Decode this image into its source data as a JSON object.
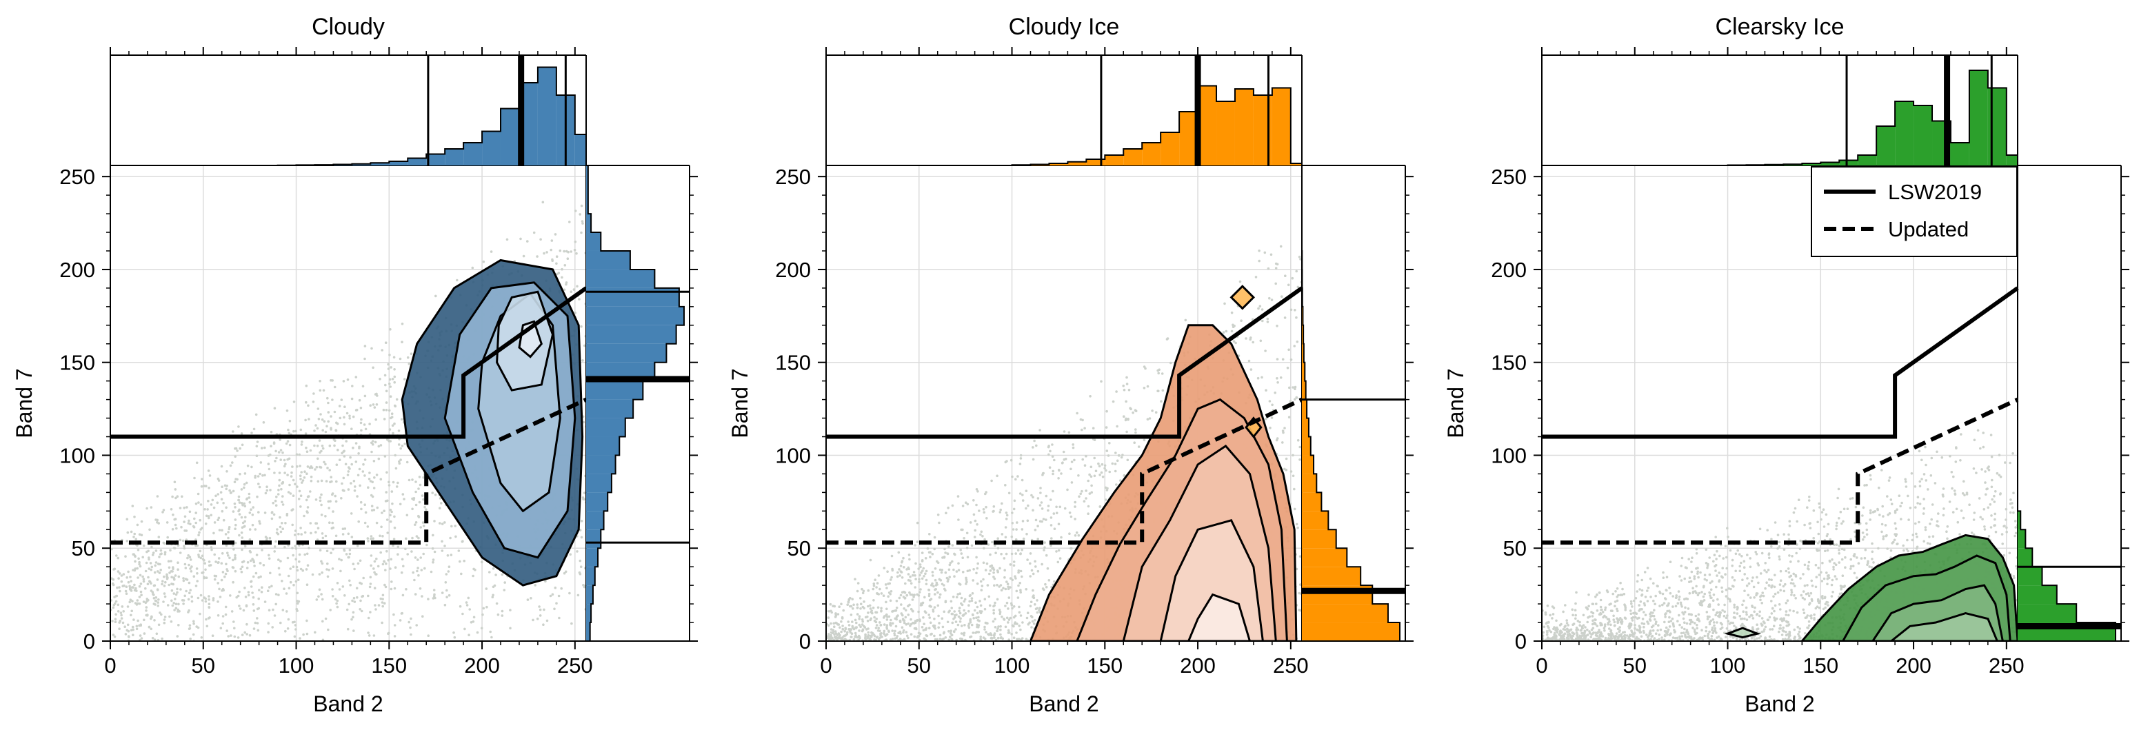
{
  "chart_data": [
    {
      "type": "scatter",
      "title": "Cloudy",
      "xlabel": "Band 2",
      "ylabel": "Band 7",
      "xlim": [
        0,
        256
      ],
      "ylim": [
        0,
        256
      ],
      "xticks": [
        0,
        50,
        100,
        150,
        200,
        250
      ],
      "yticks": [
        0,
        50,
        100,
        150,
        200,
        250
      ],
      "grid": true,
      "fill_color": "#4682b4",
      "thresholds": {
        "LSW2019": {
          "x": [
            0,
            190,
            190,
            256
          ],
          "y": [
            110,
            110,
            143,
            190
          ]
        },
        "Updated": {
          "x": [
            0,
            170,
            170,
            256
          ],
          "y": [
            53,
            53,
            90,
            130
          ]
        }
      },
      "contours": [
        [
          [
            160,
            105
          ],
          [
            180,
            75
          ],
          [
            200,
            45
          ],
          [
            222,
            30
          ],
          [
            240,
            35
          ],
          [
            252,
            60
          ],
          [
            254,
            110
          ],
          [
            252,
            170
          ],
          [
            238,
            200
          ],
          [
            210,
            205
          ],
          [
            185,
            190
          ],
          [
            165,
            160
          ],
          [
            157,
            130
          ]
        ],
        [
          [
            180,
            120
          ],
          [
            195,
            80
          ],
          [
            212,
            50
          ],
          [
            230,
            45
          ],
          [
            246,
            70
          ],
          [
            250,
            120
          ],
          [
            246,
            175
          ],
          [
            228,
            193
          ],
          [
            205,
            190
          ],
          [
            188,
            165
          ]
        ],
        [
          [
            198,
            125
          ],
          [
            210,
            85
          ],
          [
            222,
            70
          ],
          [
            236,
            80
          ],
          [
            242,
            120
          ],
          [
            238,
            170
          ],
          [
            226,
            187
          ],
          [
            210,
            175
          ],
          [
            200,
            150
          ]
        ],
        [
          [
            208,
            150
          ],
          [
            216,
            135
          ],
          [
            232,
            138
          ],
          [
            238,
            165
          ],
          [
            230,
            188
          ],
          [
            216,
            185
          ],
          [
            209,
            170
          ]
        ],
        [
          [
            220,
            158
          ],
          [
            226,
            153
          ],
          [
            232,
            160
          ],
          [
            228,
            172
          ],
          [
            222,
            170
          ]
        ]
      ],
      "hist_x": {
        "bins": [
          0,
          10,
          20,
          30,
          40,
          50,
          60,
          70,
          80,
          90,
          100,
          110,
          120,
          130,
          140,
          150,
          160,
          170,
          180,
          190,
          200,
          210,
          220,
          230,
          240,
          250,
          256
        ],
        "counts": [
          0,
          0,
          0,
          0,
          0,
          0,
          0,
          0,
          0,
          0.002,
          0.004,
          0.006,
          0.01,
          0.015,
          0.025,
          0.04,
          0.07,
          0.11,
          0.16,
          0.22,
          0.33,
          0.55,
          0.8,
          0.95,
          0.68,
          0.3
        ],
        "lines": [
          {
            "x": 171,
            "bold": false
          },
          {
            "x": 221,
            "bold": true
          },
          {
            "x": 245,
            "bold": false
          }
        ]
      },
      "hist_y": {
        "bins": [
          0,
          10,
          20,
          30,
          40,
          50,
          60,
          70,
          80,
          90,
          100,
          110,
          120,
          130,
          140,
          150,
          160,
          170,
          180,
          190,
          200,
          210,
          220,
          230,
          256
        ],
        "counts": [
          0.04,
          0.05,
          0.07,
          0.09,
          0.12,
          0.15,
          0.18,
          0.22,
          0.26,
          0.3,
          0.34,
          0.4,
          0.48,
          0.58,
          0.7,
          0.82,
          0.92,
          1.0,
          0.95,
          0.7,
          0.45,
          0.15,
          0.05,
          0.02
        ],
        "lines": [
          {
            "y": 53,
            "bold": false
          },
          {
            "y": 141,
            "bold": true
          },
          {
            "y": 188,
            "bold": false
          }
        ]
      }
    },
    {
      "type": "scatter",
      "title": "Cloudy Ice",
      "xlabel": "Band 2",
      "ylabel": "Band 7",
      "xlim": [
        0,
        256
      ],
      "ylim": [
        0,
        256
      ],
      "xticks": [
        0,
        50,
        100,
        150,
        200,
        250
      ],
      "yticks": [
        0,
        50,
        100,
        150,
        200,
        250
      ],
      "grid": true,
      "fill_color": "#ff9500",
      "thresholds": {
        "LSW2019": {
          "x": [
            0,
            190,
            190,
            256
          ],
          "y": [
            110,
            110,
            143,
            190
          ]
        },
        "Updated": {
          "x": [
            0,
            170,
            170,
            256
          ],
          "y": [
            53,
            53,
            90,
            130
          ]
        }
      },
      "contours": [
        [
          [
            110,
            0
          ],
          [
            253,
            0
          ],
          [
            252,
            60
          ],
          [
            246,
            90
          ],
          [
            238,
            110
          ],
          [
            232,
            130
          ],
          [
            218,
            160
          ],
          [
            208,
            170
          ],
          [
            195,
            170
          ],
          [
            188,
            150
          ],
          [
            180,
            120
          ],
          [
            170,
            100
          ],
          [
            155,
            80
          ],
          [
            138,
            55
          ],
          [
            120,
            25
          ]
        ],
        [
          [
            135,
            0
          ],
          [
            248,
            0
          ],
          [
            245,
            60
          ],
          [
            238,
            95
          ],
          [
            225,
            120
          ],
          [
            212,
            130
          ],
          [
            200,
            125
          ],
          [
            188,
            100
          ],
          [
            172,
            75
          ],
          [
            158,
            52
          ],
          [
            145,
            25
          ]
        ],
        [
          [
            160,
            0
          ],
          [
            242,
            0
          ],
          [
            238,
            50
          ],
          [
            228,
            90
          ],
          [
            215,
            105
          ],
          [
            200,
            95
          ],
          [
            185,
            65
          ],
          [
            170,
            40
          ]
        ],
        [
          [
            180,
            0
          ],
          [
            235,
            0
          ],
          [
            230,
            40
          ],
          [
            218,
            65
          ],
          [
            200,
            60
          ],
          [
            188,
            35
          ]
        ],
        [
          [
            195,
            0
          ],
          [
            228,
            0
          ],
          [
            222,
            20
          ],
          [
            208,
            25
          ],
          [
            200,
            12
          ]
        ],
        [
          [
            218,
            185
          ],
          [
            224,
            191
          ],
          [
            230,
            185
          ],
          [
            224,
            179
          ]
        ],
        [
          [
            226,
            115
          ],
          [
            230,
            120
          ],
          [
            234,
            115
          ],
          [
            230,
            110
          ]
        ]
      ],
      "hist_x": {
        "bins": [
          0,
          10,
          20,
          30,
          40,
          50,
          60,
          70,
          80,
          90,
          100,
          110,
          120,
          130,
          140,
          150,
          160,
          170,
          180,
          190,
          200,
          210,
          220,
          230,
          240,
          250,
          256
        ],
        "counts": [
          0,
          0,
          0,
          0,
          0,
          0,
          0,
          0,
          0,
          0,
          0.005,
          0.01,
          0.02,
          0.035,
          0.06,
          0.1,
          0.16,
          0.22,
          0.32,
          0.52,
          0.77,
          0.62,
          0.74,
          0.68,
          0.75,
          0.02
        ],
        "lines": [
          {
            "x": 148,
            "bold": false
          },
          {
            "x": 200,
            "bold": true
          },
          {
            "x": 238,
            "bold": false
          }
        ]
      },
      "hist_y": {
        "bins": [
          0,
          10,
          20,
          30,
          40,
          50,
          60,
          70,
          80,
          90,
          100,
          110,
          120,
          130,
          140,
          150,
          160,
          170,
          180,
          190,
          200,
          210,
          256
        ],
        "counts": [
          1.0,
          0.88,
          0.72,
          0.6,
          0.46,
          0.35,
          0.27,
          0.2,
          0.15,
          0.12,
          0.09,
          0.07,
          0.05,
          0.04,
          0.03,
          0.02,
          0.015,
          0.01,
          0.005,
          0.003,
          0.002,
          0
        ],
        "lines": [
          {
            "y": 27,
            "bold": true
          },
          {
            "y": 130,
            "bold": false
          }
        ]
      }
    },
    {
      "type": "scatter",
      "title": "Clearsky Ice",
      "xlabel": "Band 2",
      "ylabel": "Band 7",
      "xlim": [
        0,
        256
      ],
      "ylim": [
        0,
        256
      ],
      "xticks": [
        0,
        50,
        100,
        150,
        200,
        250
      ],
      "yticks": [
        0,
        50,
        100,
        150,
        200,
        250
      ],
      "grid": true,
      "fill_color": "#2ca02c",
      "legend": {
        "placement": "top-right",
        "entries": [
          {
            "label": "LSW2019",
            "style": "solid"
          },
          {
            "label": "Updated",
            "style": "dashed"
          }
        ]
      },
      "thresholds": {
        "LSW2019": {
          "x": [
            0,
            190,
            190,
            256
          ],
          "y": [
            110,
            110,
            143,
            190
          ]
        },
        "Updated": {
          "x": [
            0,
            170,
            170,
            256
          ],
          "y": [
            53,
            53,
            90,
            130
          ]
        }
      },
      "contours": [
        [
          [
            140,
            0
          ],
          [
            256,
            0
          ],
          [
            254,
            30
          ],
          [
            248,
            45
          ],
          [
            240,
            55
          ],
          [
            228,
            57
          ],
          [
            215,
            52
          ],
          [
            205,
            48
          ],
          [
            192,
            46
          ],
          [
            180,
            40
          ],
          [
            165,
            28
          ],
          [
            150,
            12
          ]
        ],
        [
          [
            162,
            0
          ],
          [
            252,
            0
          ],
          [
            250,
            25
          ],
          [
            244,
            42
          ],
          [
            234,
            46
          ],
          [
            222,
            40
          ],
          [
            212,
            36
          ],
          [
            200,
            35
          ],
          [
            185,
            30
          ],
          [
            172,
            18
          ]
        ],
        [
          [
            178,
            0
          ],
          [
            248,
            0
          ],
          [
            244,
            20
          ],
          [
            238,
            30
          ],
          [
            228,
            28
          ],
          [
            215,
            22
          ],
          [
            200,
            20
          ],
          [
            188,
            15
          ]
        ],
        [
          [
            188,
            0
          ],
          [
            245,
            0
          ],
          [
            240,
            12
          ],
          [
            228,
            15
          ],
          [
            212,
            10
          ],
          [
            198,
            8
          ]
        ],
        [
          [
            100,
            4
          ],
          [
            108,
            7
          ],
          [
            116,
            4
          ],
          [
            108,
            2
          ]
        ]
      ],
      "hist_x": {
        "bins": [
          0,
          10,
          20,
          30,
          40,
          50,
          60,
          70,
          80,
          90,
          100,
          110,
          120,
          130,
          140,
          150,
          160,
          170,
          180,
          190,
          200,
          210,
          220,
          230,
          240,
          250,
          256
        ],
        "counts": [
          0,
          0,
          0,
          0,
          0,
          0,
          0,
          0,
          0,
          0,
          0.003,
          0.005,
          0.008,
          0.012,
          0.02,
          0.03,
          0.05,
          0.1,
          0.38,
          0.62,
          0.58,
          0.43,
          0.22,
          0.92,
          0.75,
          0.1
        ],
        "lines": [
          {
            "x": 164,
            "bold": false
          },
          {
            "x": 218,
            "bold": true
          },
          {
            "x": 242,
            "bold": false
          }
        ]
      },
      "hist_y": {
        "bins": [
          0,
          10,
          20,
          30,
          40,
          50,
          60,
          70,
          256
        ],
        "counts": [
          1.0,
          0.6,
          0.4,
          0.25,
          0.15,
          0.08,
          0.03,
          0
        ],
        "lines": [
          {
            "y": 8,
            "bold": true
          },
          {
            "y": 40,
            "bold": false
          }
        ]
      }
    }
  ]
}
